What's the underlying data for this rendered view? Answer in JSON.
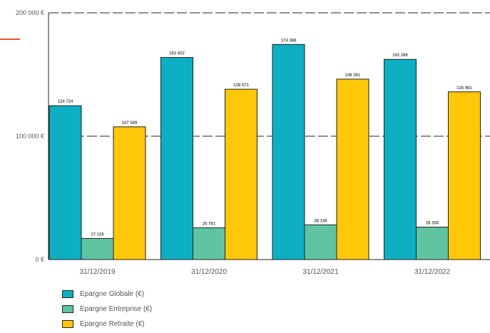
{
  "chart_data": {
    "type": "bar",
    "categories": [
      "31/12/2019",
      "31/12/2020",
      "31/12/2021",
      "31/12/2022"
    ],
    "series": [
      {
        "name": "Epargne Globale (€)",
        "color": "#0cb0c2",
        "values": [
          124724,
          163832,
          174388,
          162286
        ],
        "labels": [
          "124 724",
          "163 832",
          "174 388",
          "162 286"
        ]
      },
      {
        "name": "Epargne Entreprise (€)",
        "color": "#5fc4a2",
        "values": [
          17126,
          25761,
          28146,
          26306
        ],
        "labels": [
          "17 126",
          "25 761",
          "28 146",
          "26 306"
        ]
      },
      {
        "name": "Epargne Retraite (€)",
        "color": "#fec70a",
        "values": [
          107599,
          138071,
          146261,
          135981
        ],
        "labels": [
          "107 599",
          "138 071",
          "146 261",
          "135 981"
        ]
      }
    ],
    "y_ticks": [
      {
        "value": 0,
        "label": "0 €"
      },
      {
        "value": 100000,
        "label": "100 000 €"
      },
      {
        "value": 200000,
        "label": "200 000 €"
      }
    ],
    "ylim": [
      0,
      200000
    ],
    "grid": "dashed",
    "legend_position": "bottom-left",
    "accent_color": "#e8532a"
  }
}
